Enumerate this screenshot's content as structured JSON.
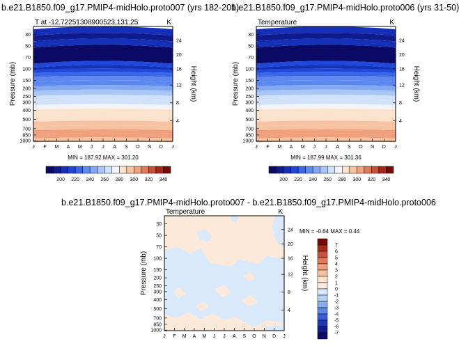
{
  "chart_data": [
    {
      "type": "heatmap",
      "title": "b.e21.B1850.f09_g17.PMIP4-midHolo.proto007 (yrs 182-201)",
      "subtitle_left": "T at -12.72251308900523,131.25",
      "subtitle_right": "K",
      "ylabel": "Pressure (mb)",
      "ylabel_right": "Height (km)",
      "x_ticks": [
        "J",
        "F",
        "M",
        "A",
        "M",
        "J",
        "J",
        "A",
        "S",
        "O",
        "N",
        "D",
        "J"
      ],
      "y_ticks": [
        "30",
        "50",
        "70",
        "100",
        "150",
        "200",
        "250",
        "300",
        "400",
        "500",
        "700",
        "850",
        "1000"
      ],
      "y_ticks_right": [
        "24",
        "20",
        "16",
        "12",
        "8",
        "4"
      ],
      "minmax": "MIN = 187.92 MAX = 301.20",
      "colorbar_labels": [
        "200",
        "220",
        "240",
        "260",
        "280",
        "300",
        "320",
        "340"
      ]
    },
    {
      "type": "heatmap",
      "title": "b.e21.B1850.f09_g17.PMIP4-midHolo.proto006 (yrs 31-50)",
      "subtitle_left": "Temperature",
      "subtitle_right": "K",
      "ylabel": "Pressure (mb)",
      "ylabel_right": "Height (km)",
      "x_ticks": [
        "J",
        "F",
        "M",
        "A",
        "M",
        "J",
        "J",
        "A",
        "S",
        "O",
        "N",
        "D",
        "J"
      ],
      "y_ticks": [
        "30",
        "50",
        "70",
        "100",
        "150",
        "200",
        "250",
        "300",
        "400",
        "500",
        "700",
        "850",
        "1000"
      ],
      "y_ticks_right": [
        "24",
        "20",
        "16",
        "12",
        "8",
        "4"
      ],
      "minmax": "MIN = 187.99 MAX = 301.36",
      "colorbar_labels": [
        "200",
        "220",
        "240",
        "260",
        "280",
        "300",
        "320",
        "340"
      ]
    },
    {
      "type": "heatmap",
      "title": "b.e21.B1850.f09_g17.PMIP4-midHolo.proto007 - b.e21.B1850.f09_g17.PMIP4-midHolo.proto006",
      "subtitle_left": "Temperature",
      "subtitle_right": "K",
      "ylabel": "Pressure (mb)",
      "ylabel_right": "Height (km)",
      "x_ticks": [
        "J",
        "F",
        "M",
        "A",
        "M",
        "J",
        "J",
        "A",
        "S",
        "O",
        "N",
        "D",
        "J"
      ],
      "y_ticks": [
        "30",
        "50",
        "70",
        "100",
        "150",
        "200",
        "250",
        "300",
        "400",
        "500",
        "700",
        "850",
        "1000"
      ],
      "y_ticks_right": [
        "24",
        "20",
        "16",
        "12",
        "8",
        "4"
      ],
      "minmax": "MIN =  -0.64 MAX =   0.44",
      "colorbar_labels": [
        "7",
        "6",
        "5",
        "4",
        "3",
        "2",
        "1",
        "0",
        "-1",
        "-2",
        "-3",
        "-4",
        "-5",
        "-6",
        "-7"
      ]
    }
  ],
  "colors": {
    "abs_scale": [
      "#0a0a66",
      "#0f1a8c",
      "#1530b8",
      "#2048d8",
      "#3a66e8",
      "#5c88f0",
      "#82a8f4",
      "#a8c6f6",
      "#d0e2fa",
      "#f2f4f8",
      "#fbe2cc",
      "#f7c2a2",
      "#f0a07c",
      "#e07a5a",
      "#c8503c",
      "#a8281c",
      "#7a0a0a"
    ],
    "diff_scale": [
      "#7a0a0a",
      "#a8281c",
      "#c8503c",
      "#e07a5a",
      "#f0a07c",
      "#f7c2a2",
      "#fbe2cc",
      "#fde9d9",
      "#d7e9fb",
      "#b4d0f5",
      "#86aef0",
      "#5e88e8",
      "#3a5ed8",
      "#2038b8",
      "#0f1a8c",
      "#0a0a66"
    ],
    "diff_warm": "#fde9d9",
    "diff_cool": "#d7e9fb"
  }
}
